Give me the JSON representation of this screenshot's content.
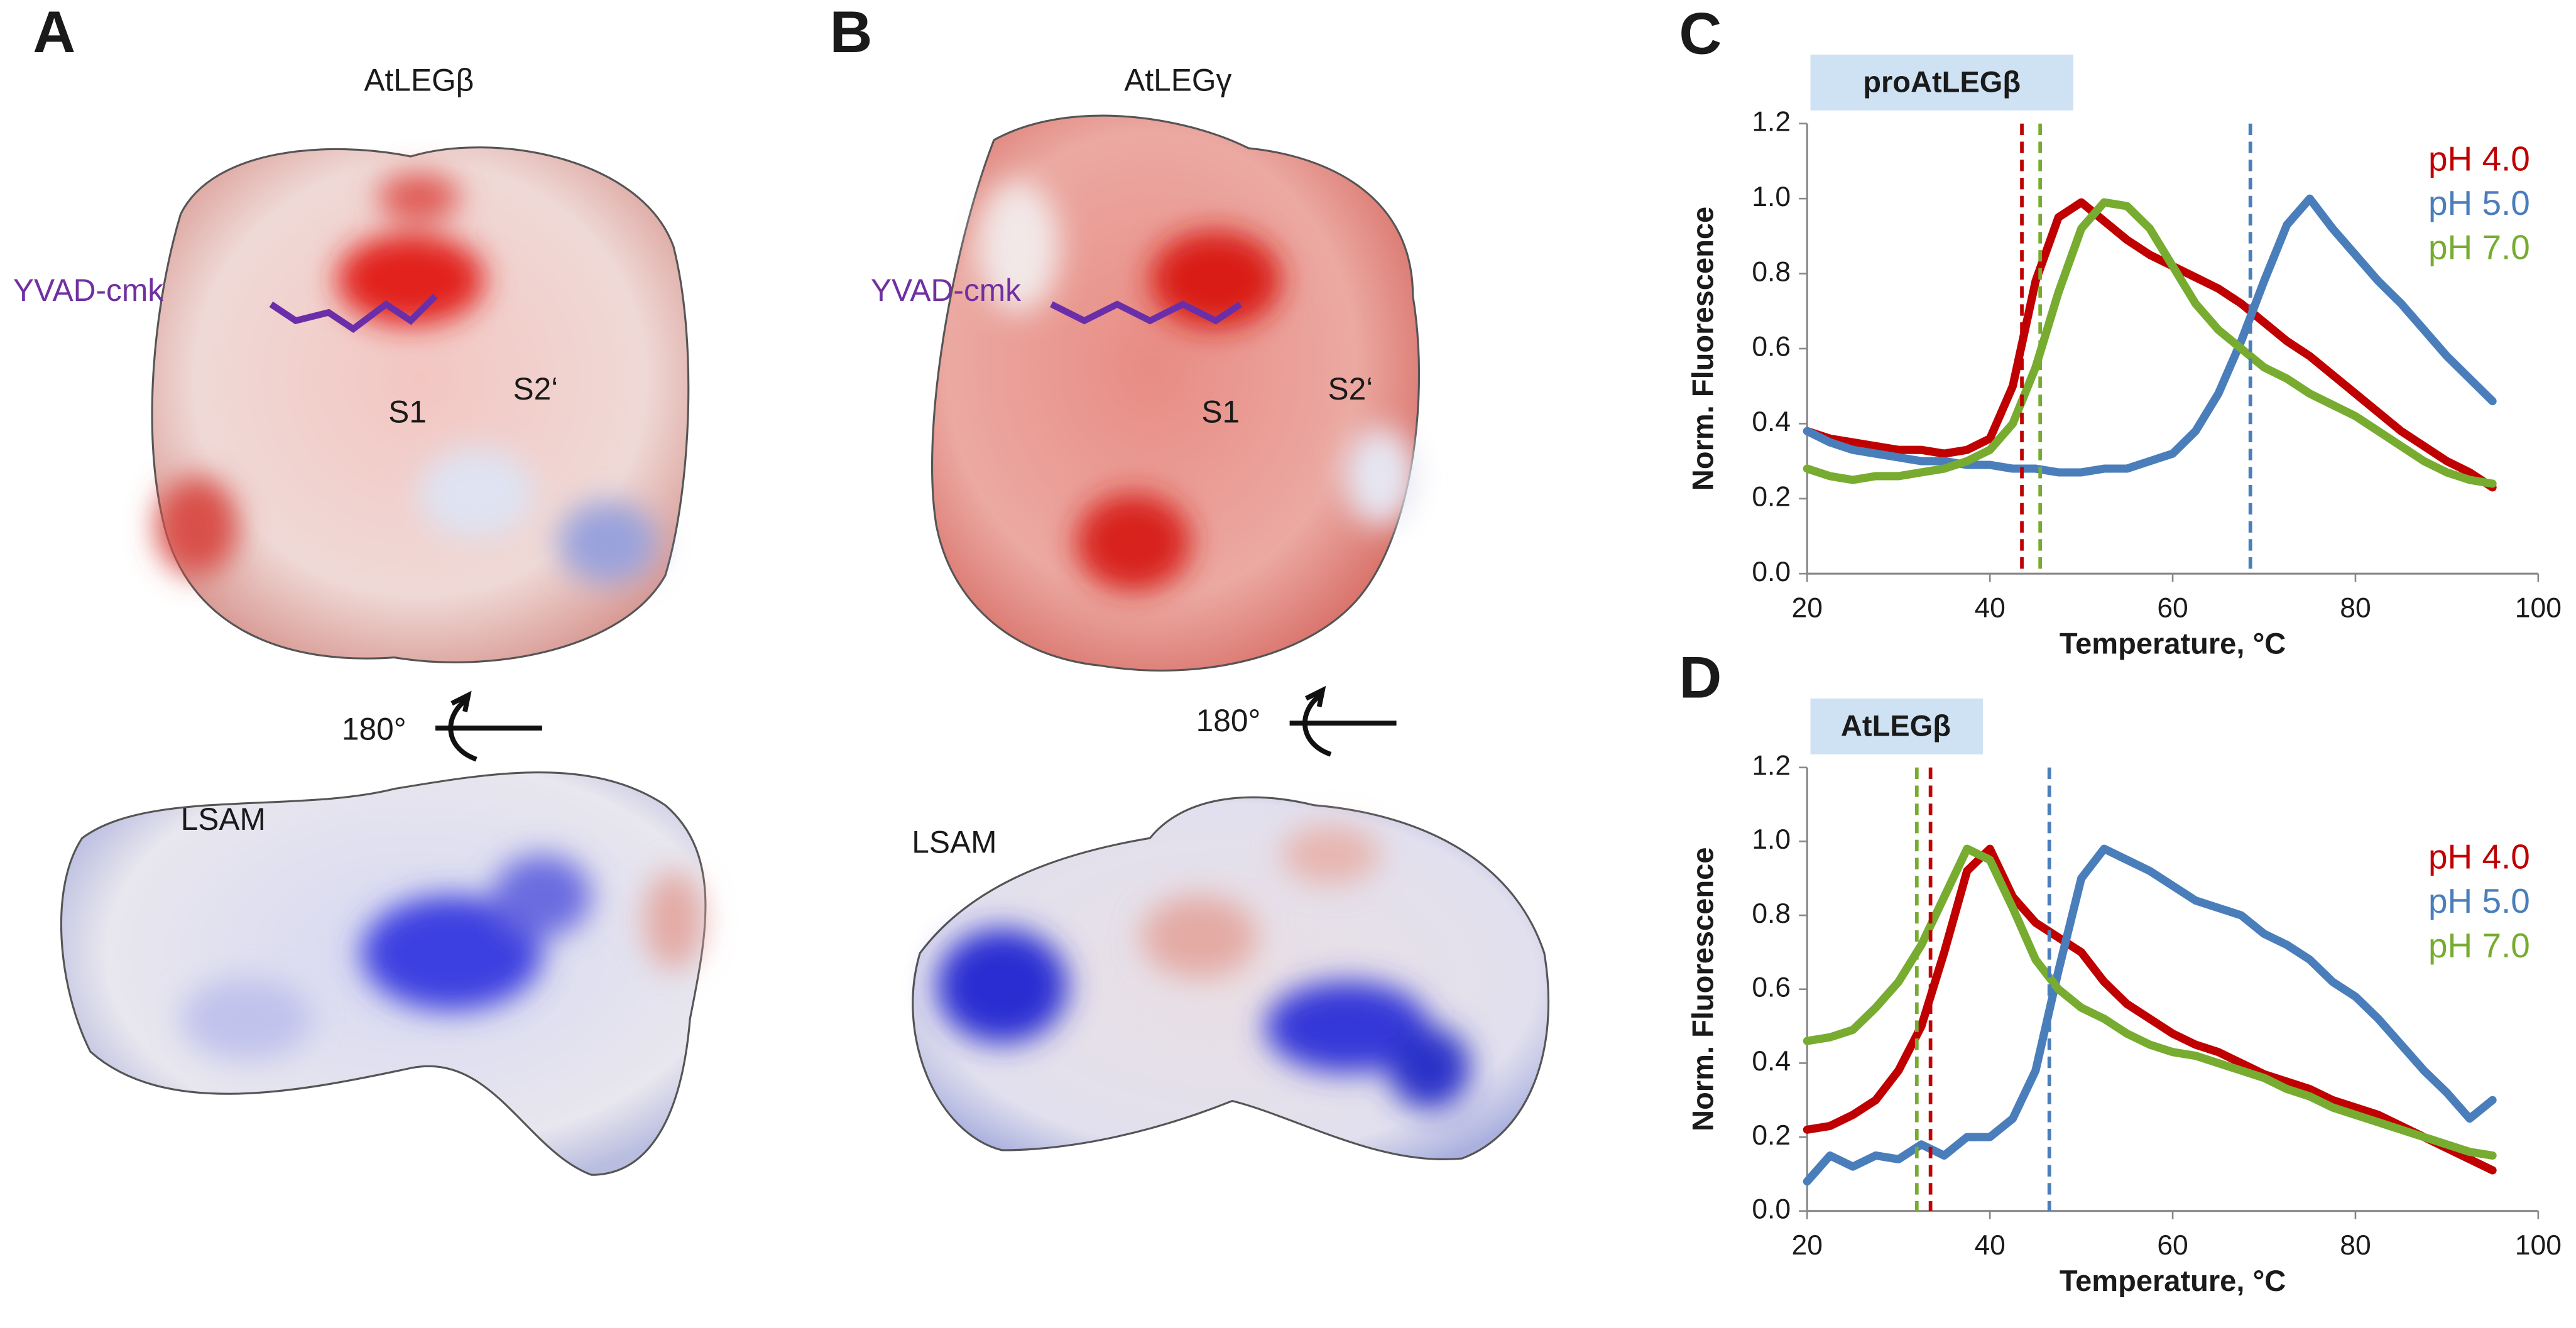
{
  "structure_panels": [
    {
      "label": "A",
      "name": "AtLEGβ",
      "ligand": "YVAD-cmk",
      "sites": [
        "S1",
        "S2‘"
      ],
      "rotation": "180°",
      "domain": "LSAM"
    },
    {
      "label": "B",
      "name": "AtLEGγ",
      "ligand": "YVAD-cmk",
      "sites": [
        "S1",
        "S2‘"
      ],
      "rotation": "180°",
      "domain": "LSAM"
    }
  ],
  "chart_data": [
    {
      "type": "line",
      "panel": "C",
      "badge": "proAtLEGβ",
      "x_label": "Temperature, °C",
      "y_label": "Norm. Fluorescence",
      "x": [
        20,
        22.5,
        25,
        27.5,
        30,
        32.5,
        35,
        37.5,
        40,
        42.5,
        45,
        47.5,
        50,
        52.5,
        55,
        57.5,
        60,
        62.5,
        65,
        67.5,
        70,
        72.5,
        75,
        77.5,
        80,
        82.5,
        85,
        87.5,
        90,
        92.5,
        95
      ],
      "xlim": [
        20,
        100
      ],
      "xticks": [
        20,
        40,
        60,
        80,
        100
      ],
      "ylim": [
        0,
        1.2
      ],
      "yticks": [
        {
          "value": 0,
          "label": "0.0"
        },
        0.2,
        0.4,
        0.6,
        0.8,
        {
          "value": 1,
          "label": "1.0"
        },
        1.2
      ],
      "series": [
        {
          "name": "pH 4.0",
          "color": "#c00000",
          "transition": 43.5,
          "values": [
            0.38,
            0.36,
            0.35,
            0.34,
            0.33,
            0.33,
            0.32,
            0.33,
            0.36,
            0.5,
            0.78,
            0.95,
            0.99,
            0.94,
            0.89,
            0.85,
            0.82,
            0.79,
            0.76,
            0.72,
            0.67,
            0.62,
            0.58,
            0.53,
            0.48,
            0.43,
            0.38,
            0.34,
            0.3,
            0.27,
            0.23
          ]
        },
        {
          "name": "pH 5.0",
          "color": "#4a7ebb",
          "transition": 68.5,
          "values": [
            0.38,
            0.35,
            0.33,
            0.32,
            0.31,
            0.3,
            0.3,
            0.29,
            0.29,
            0.28,
            0.28,
            0.27,
            0.27,
            0.28,
            0.28,
            0.3,
            0.32,
            0.38,
            0.48,
            0.62,
            0.78,
            0.93,
            1.0,
            0.92,
            0.85,
            0.78,
            0.72,
            0.65,
            0.58,
            0.52,
            0.46
          ]
        },
        {
          "name": "pH 7.0",
          "color": "#77ac30",
          "transition": 45.5,
          "values": [
            0.28,
            0.26,
            0.25,
            0.26,
            0.26,
            0.27,
            0.28,
            0.3,
            0.33,
            0.4,
            0.55,
            0.75,
            0.92,
            0.99,
            0.98,
            0.92,
            0.82,
            0.72,
            0.65,
            0.6,
            0.55,
            0.52,
            0.48,
            0.45,
            0.42,
            0.38,
            0.34,
            0.3,
            0.27,
            0.25,
            0.24
          ]
        }
      ]
    },
    {
      "type": "line",
      "panel": "D",
      "badge": "AtLEGβ",
      "x_label": "Temperature, °C",
      "y_label": "Norm. Fluorescence",
      "x": [
        20,
        22.5,
        25,
        27.5,
        30,
        32.5,
        35,
        37.5,
        40,
        42.5,
        45,
        47.5,
        50,
        52.5,
        55,
        57.5,
        60,
        62.5,
        65,
        67.5,
        70,
        72.5,
        75,
        77.5,
        80,
        82.5,
        85,
        87.5,
        90,
        92.5,
        95
      ],
      "xlim": [
        20,
        100
      ],
      "xticks": [
        20,
        40,
        60,
        80,
        100
      ],
      "ylim": [
        0,
        1.2
      ],
      "yticks": [
        {
          "value": 0,
          "label": "0.0"
        },
        0.2,
        0.4,
        0.6,
        0.8,
        {
          "value": 1,
          "label": "1.0"
        },
        1.2
      ],
      "series": [
        {
          "name": "pH 4.0",
          "color": "#c00000",
          "transition": 33.5,
          "values": [
            0.22,
            0.23,
            0.26,
            0.3,
            0.38,
            0.5,
            0.7,
            0.92,
            0.98,
            0.85,
            0.78,
            0.74,
            0.7,
            0.62,
            0.56,
            0.52,
            0.48,
            0.45,
            0.43,
            0.4,
            0.37,
            0.35,
            0.33,
            0.3,
            0.28,
            0.26,
            0.23,
            0.2,
            0.17,
            0.14,
            0.11
          ]
        },
        {
          "name": "pH 5.0",
          "color": "#4a7ebb",
          "transition": 46.5,
          "values": [
            0.08,
            0.15,
            0.12,
            0.15,
            0.14,
            0.18,
            0.15,
            0.2,
            0.2,
            0.25,
            0.38,
            0.65,
            0.9,
            0.98,
            0.95,
            0.92,
            0.88,
            0.84,
            0.82,
            0.8,
            0.75,
            0.72,
            0.68,
            0.62,
            0.58,
            0.52,
            0.45,
            0.38,
            0.32,
            0.25,
            0.3
          ]
        },
        {
          "name": "pH 7.0",
          "color": "#77ac30",
          "transition": 32,
          "values": [
            0.46,
            0.47,
            0.49,
            0.55,
            0.62,
            0.72,
            0.85,
            0.98,
            0.95,
            0.82,
            0.68,
            0.6,
            0.55,
            0.52,
            0.48,
            0.45,
            0.43,
            0.42,
            0.4,
            0.38,
            0.36,
            0.33,
            0.31,
            0.28,
            0.26,
            0.24,
            0.22,
            0.2,
            0.18,
            0.16,
            0.15
          ]
        }
      ]
    }
  ]
}
